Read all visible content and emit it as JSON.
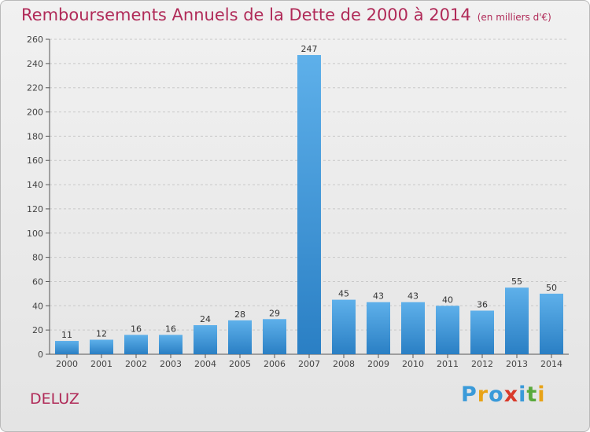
{
  "title": "Remboursements Annuels de la Dette de 2000 à 2014",
  "subtitle": "(en milliers d'€)",
  "commune": "DELUZ",
  "logo": {
    "letters": [
      "P",
      "r",
      "o",
      "x",
      "i",
      "t",
      "i"
    ],
    "colors": [
      "#3a9ad9",
      "#e8a317",
      "#3a9ad9",
      "#d93a2b",
      "#3a9ad9",
      "#59a93c",
      "#e8a317"
    ]
  },
  "colors": {
    "bar_top": "#5eb0ea",
    "bar_bottom": "#2a7fc4",
    "title": "#b02a58",
    "grid": "#c8c8c8"
  },
  "chart_data": {
    "type": "bar",
    "categories": [
      "2000",
      "2001",
      "2002",
      "2003",
      "2004",
      "2005",
      "2006",
      "2007",
      "2008",
      "2009",
      "2010",
      "2011",
      "2012",
      "2013",
      "2014"
    ],
    "values": [
      11,
      12,
      16,
      16,
      24,
      28,
      29,
      247,
      45,
      43,
      43,
      40,
      36,
      55,
      50
    ],
    "yticks": [
      "0",
      "20",
      "40",
      "60",
      "80",
      "100",
      "120",
      "140",
      "160",
      "180",
      "200",
      "220",
      "240",
      "260"
    ],
    "ylim": [
      0,
      260
    ],
    "grid": true
  }
}
